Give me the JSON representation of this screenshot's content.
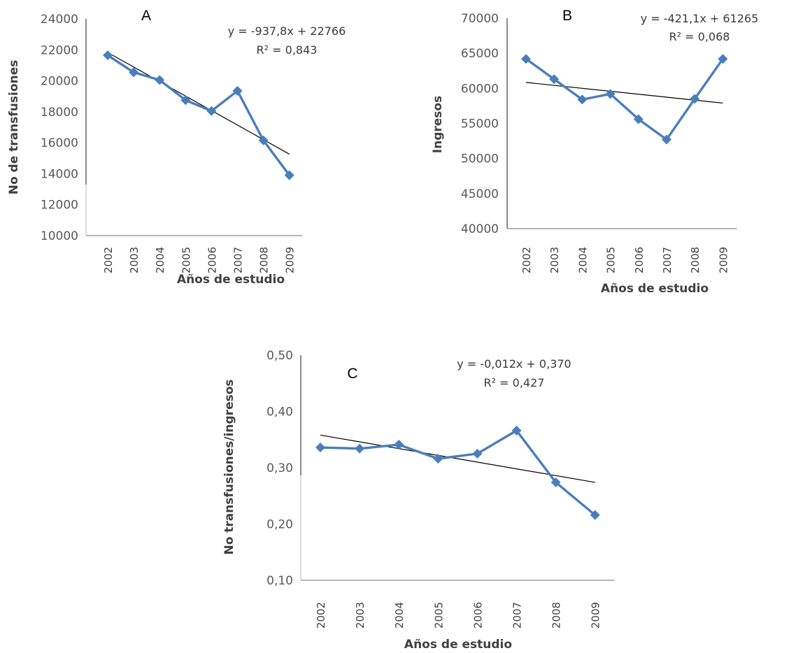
{
  "colors": {
    "series": "#4a7ebb",
    "trend": "#000000",
    "axis": "#8c8c8c",
    "text": "#404040"
  },
  "chart_data": [
    {
      "panel_label": "A",
      "type": "line",
      "categories": [
        "2002",
        "2003",
        "2004",
        "2005",
        "2006",
        "2007",
        "2008",
        "2009"
      ],
      "series": [
        {
          "values": [
            21650,
            20550,
            20050,
            18750,
            18050,
            19350,
            16150,
            13900
          ],
          "marker": "diamond"
        }
      ],
      "trendline": {
        "type": "linear",
        "equation": "y = -937,8x + 22766",
        "r2": "R² = 0,843",
        "slope": -937.8,
        "intercept": 22766
      },
      "xlabel": "Años de estudio",
      "ylabel": "No de transfusiones",
      "ylim": [
        10000,
        24000
      ],
      "yticks": [
        "10000",
        "12000",
        "14000",
        "16000",
        "18000",
        "20000",
        "22000",
        "24000"
      ],
      "grid": false
    },
    {
      "panel_label": "B",
      "type": "line",
      "categories": [
        "2002",
        "2003",
        "2004",
        "2005",
        "2006",
        "2007",
        "2008",
        "2009"
      ],
      "series": [
        {
          "values": [
            64200,
            61300,
            58400,
            59200,
            55600,
            52700,
            58500,
            64200
          ],
          "marker": "diamond"
        }
      ],
      "trendline": {
        "type": "linear",
        "equation": "y = -421,1x + 61265",
        "r2": "R² = 0,068",
        "slope": -421.1,
        "intercept": 61265
      },
      "xlabel": "Años de estudio",
      "ylabel": "Ingresos",
      "ylim": [
        40000,
        70000
      ],
      "yticks": [
        "40000",
        "45000",
        "50000",
        "55000",
        "60000",
        "65000",
        "70000"
      ],
      "grid": false
    },
    {
      "panel_label": "C",
      "type": "line",
      "categories": [
        "2002",
        "2003",
        "2004",
        "2005",
        "2006",
        "2007",
        "2008",
        "2009"
      ],
      "series": [
        {
          "values": [
            0.336,
            0.334,
            0.341,
            0.316,
            0.325,
            0.366,
            0.274,
            0.216
          ],
          "marker": "diamond"
        }
      ],
      "trendline": {
        "type": "linear",
        "equation": "y = -0,012x + 0,370",
        "r2": "R² = 0,427",
        "slope": -0.012,
        "intercept": 0.37
      },
      "xlabel": "Años de estudio",
      "ylabel": "No transfusiones/ingresos",
      "ylim": [
        0.1,
        0.5
      ],
      "yticks": [
        "0,10",
        "0,20",
        "0,30",
        "0,40",
        "0,50"
      ],
      "grid": false
    }
  ]
}
